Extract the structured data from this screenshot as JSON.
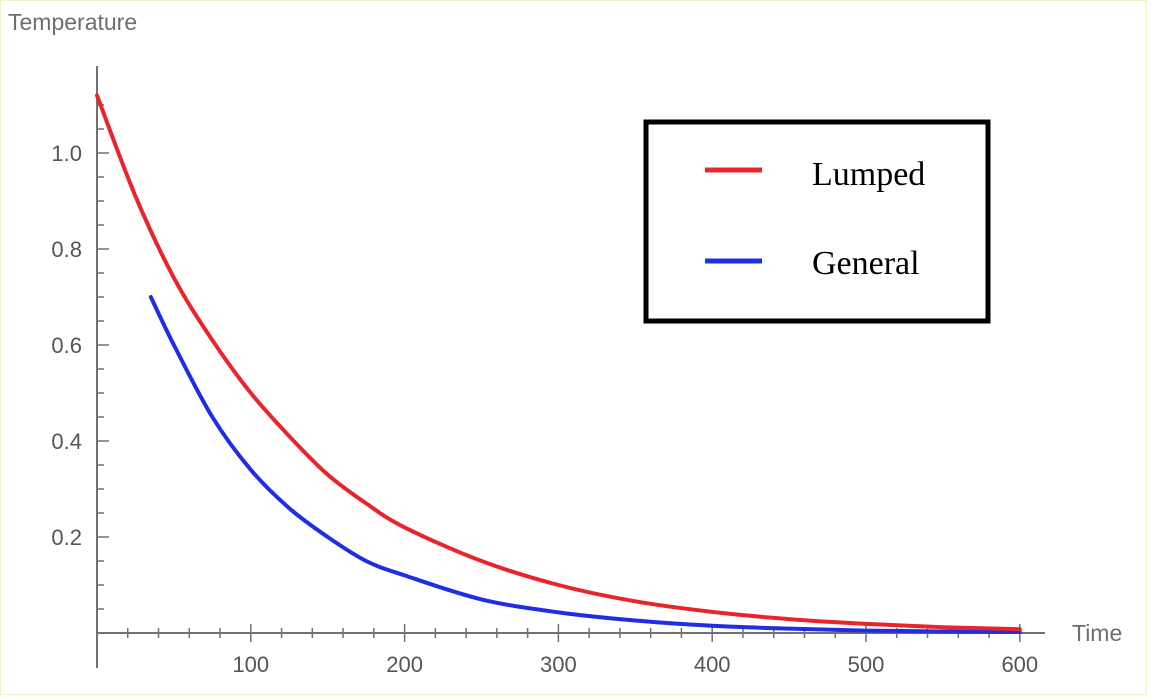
{
  "chart_data": {
    "type": "line",
    "title": "",
    "xlabel": "Time",
    "ylabel": "Temperature",
    "xlim": [
      0,
      610
    ],
    "ylim": [
      0,
      1.14
    ],
    "x_ticks": [
      100,
      200,
      300,
      400,
      500,
      600
    ],
    "x_tick_labels": [
      "100",
      "200",
      "300",
      "400",
      "500",
      "600"
    ],
    "y_ticks": [
      0.2,
      0.4,
      0.6,
      0.8,
      1.0
    ],
    "y_tick_labels": [
      "0.2",
      "0.4",
      "0.6",
      "0.8",
      "1.0"
    ],
    "grid": false,
    "legend_position": "top-right",
    "series": [
      {
        "name": "Lumped",
        "color": "#e8252b",
        "x": [
          0,
          25,
          50,
          75,
          100,
          125,
          150,
          175,
          200,
          250,
          300,
          350,
          400,
          450,
          500,
          550,
          600
        ],
        "y": [
          1.12,
          0.91,
          0.74,
          0.61,
          0.5,
          0.41,
          0.33,
          0.27,
          0.22,
          0.15,
          0.1,
          0.066,
          0.044,
          0.029,
          0.019,
          0.012,
          0.008
        ]
      },
      {
        "name": "General",
        "color": "#1f2ee6",
        "x": [
          35,
          50,
          75,
          100,
          125,
          150,
          175,
          200,
          250,
          300,
          350,
          400,
          450,
          500,
          550,
          600
        ],
        "y": [
          0.7,
          0.6,
          0.45,
          0.34,
          0.26,
          0.2,
          0.15,
          0.12,
          0.07,
          0.043,
          0.026,
          0.015,
          0.009,
          0.005,
          0.003,
          0.002
        ]
      }
    ]
  }
}
